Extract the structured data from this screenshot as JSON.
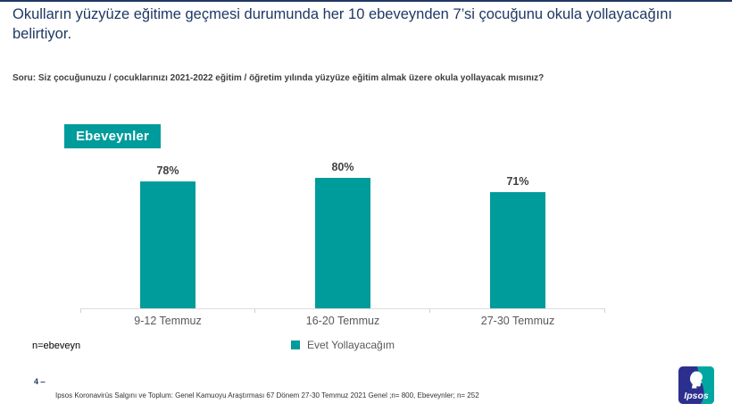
{
  "slide": {
    "title": "Okulların yüzyüze eğitime geçmesi durumunda her 10 ebeveynden 7’si çocuğunu okula yollayacağını belirtiyor.",
    "question": "Soru: Siz çocuğunuzu / çocuklarınızı 2021-2022 eğitim / öğretim yılında  yüzyüze eğitim almak üzere okula yollayacak mısınız?",
    "group_label": "Ebeveynler",
    "sample_note": "n=ebeveyn",
    "page_number": "4 ‒",
    "footnote": "Ipsos Koronavirüs  Salgını ve Toplum: Genel Kamuoyu Araştırması 67 Dönem  27-30 Temmuz 2021   Genel ;n= 800, Ebeveynler;  n= 252",
    "logo_text": "Ipsos"
  },
  "colors": {
    "accent_teal": "#009B9B",
    "title_navy": "#1F3864",
    "logo_navy": "#2D2F8E",
    "logo_teal": "#00A7A0"
  },
  "chart_data": {
    "type": "bar",
    "categories": [
      "9-12 Temmuz",
      "16-20 Temmuz",
      "27-30 Temmuz"
    ],
    "series": [
      {
        "name": "Evet Yollayacağım",
        "values": [
          78,
          80,
          71
        ]
      }
    ],
    "value_labels": [
      "78%",
      "80%",
      "71%"
    ],
    "title": "Ebeveynler",
    "xlabel": "",
    "ylabel": "",
    "ylim": [
      0,
      100
    ],
    "grid": false,
    "legend_position": "bottom",
    "bar_color": "#009B9B"
  }
}
